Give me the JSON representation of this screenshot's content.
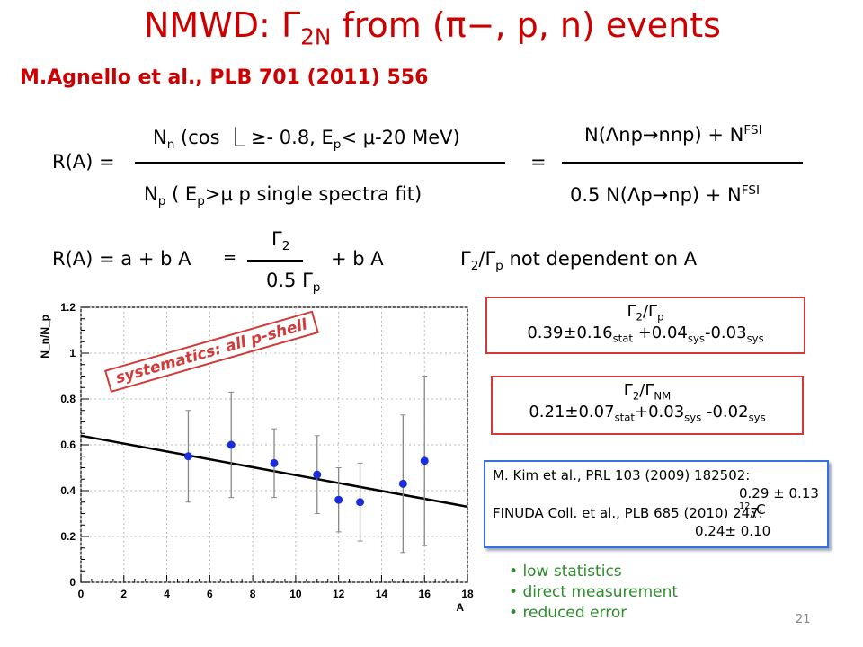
{
  "title": {
    "pre": "NMWD: ",
    "gamma": "Γ",
    "sub": "2N",
    "mid": " from (",
    "pi": "π−",
    "post": ", p, n) events"
  },
  "reference": "M.Agnello et al., PLB 701 (2011) 556",
  "ratio_eq": {
    "lhs": "R(A) =",
    "num_left": "N",
    "num_left_sub": "n",
    "num_left_rest": " (cos ⎿ ≥- 0.8, E",
    "num_left_sub2": "p",
    "num_left_rest2": "< μ-20 MeV)",
    "den_left": "N",
    "den_left_sub": "p",
    "den_left_rest": " ( E",
    "den_left_sub2": "p",
    "den_left_rest2": ">μ p single spectra fit)",
    "equals": "=",
    "num_right": "N(Λnp→nnp) + N",
    "num_right_sup": "FSI",
    "den_right": "0.5 N(Λp→np) + N",
    "den_right_sup": "FSI"
  },
  "linear_eq": {
    "lhs": "R(A) = a + b A",
    "equals": "=",
    "num": "Γ",
    "num_sub": "2",
    "den": "0.5 Γ",
    "den_sub": "p",
    "rest": "+ b A"
  },
  "independence": {
    "text_pre": "Γ",
    "sub1": "2",
    "slash": "/Γ",
    "sub2": "p",
    "text_post": " not dependent on A"
  },
  "box1": {
    "head": "Γ",
    "head_sub": "2",
    "head_slash": "/Γ",
    "head_sub2": "p",
    "val": "0.39±0.16",
    "stat": "stat",
    "sys_plus": " +0.04",
    "sys1": "sys",
    "sys_minus": "-0.03",
    "sys2": "sys"
  },
  "box2": {
    "head": "Γ",
    "head_sub": "2",
    "head_slash": "/Γ",
    "head_sub2": "NM",
    "val": "0.21±0.07",
    "stat": "stat",
    "sys_plus": "+0.03",
    "sys1": "sys",
    "sys_minus": " -0.02",
    "sys2": "sys"
  },
  "bluebox": {
    "line1": "M. Kim et al., PRL 103 (2009) 182502:",
    "line2": "0.29 ± 0.13 ",
    "line2_sup": "12",
    "line2_lam": "Λ",
    "line2_c": "C",
    "line3": "FINUDA Coll. et al., PLB 685 (2010) 247:",
    "line4": "0.24± 0.10"
  },
  "bullets": [
    "low statistics",
    "direct measurement",
    "reduced error"
  ],
  "systematics_label": "systematics: all p-shell",
  "page_number": "21",
  "chart_data": {
    "type": "scatter",
    "ylabel": "N_n/N_p",
    "xlabel": "A",
    "xlim": [
      0,
      18
    ],
    "ylim": [
      0,
      1.2
    ],
    "xticks": [
      "0",
      "2",
      "4",
      "6",
      "8",
      "10",
      "12",
      "14",
      "16",
      "18"
    ],
    "yticks": [
      "0",
      "0.2",
      "0.4",
      "0.6",
      "0.8",
      "1",
      "1.2"
    ],
    "points": [
      {
        "x": 5,
        "y": 0.55,
        "err": 0.2
      },
      {
        "x": 7,
        "y": 0.6,
        "err": 0.23
      },
      {
        "x": 9,
        "y": 0.52,
        "err": 0.15
      },
      {
        "x": 11,
        "y": 0.47,
        "err": 0.17
      },
      {
        "x": 12,
        "y": 0.36,
        "err": 0.14
      },
      {
        "x": 13,
        "y": 0.35,
        "err": 0.17
      },
      {
        "x": 15,
        "y": 0.43,
        "err": 0.3
      },
      {
        "x": 16,
        "y": 0.53,
        "err": 0.37
      }
    ],
    "fit_line": {
      "x": [
        0,
        18
      ],
      "y": [
        0.64,
        0.33
      ]
    },
    "marker_color": "#1a2ee0",
    "grid": true
  }
}
